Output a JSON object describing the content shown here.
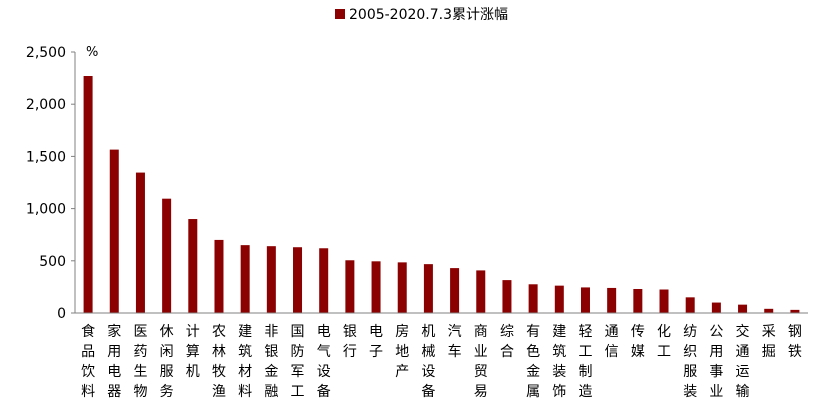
{
  "chart_data": {
    "type": "bar",
    "unit_label": "%",
    "ylim": [
      0,
      2500
    ],
    "yticks": [
      0,
      500,
      1000,
      1500,
      2000,
      2500
    ],
    "ytick_labels": [
      "0",
      "500",
      "1,000",
      "1,500",
      "2,000",
      "2,500"
    ],
    "legend_position": "top-center",
    "grid": false,
    "series": [
      {
        "name": "2005-2020.7.3累计涨幅",
        "color": "#8B0000",
        "values": [
          2270,
          1565,
          1345,
          1095,
          900,
          700,
          650,
          640,
          630,
          620,
          505,
          495,
          485,
          468,
          430,
          408,
          315,
          275,
          262,
          245,
          240,
          230,
          225,
          150,
          100,
          80,
          40,
          30
        ]
      }
    ],
    "categories": [
      "食品饮料",
      "家用电器",
      "医药生物",
      "休闲服务",
      "计算机",
      "农林牧渔",
      "建筑材料",
      "非银金融",
      "国防军工",
      "电气设备",
      "银行",
      "电子",
      "房地产",
      "机械设备",
      "汽车",
      "商业贸易",
      "综合",
      "有色金属",
      "建筑装饰",
      "轻工制造",
      "通信",
      "传媒",
      "化工",
      "纺织服装",
      "公用事业",
      "交通运输",
      "采掘",
      "钢铁"
    ]
  }
}
